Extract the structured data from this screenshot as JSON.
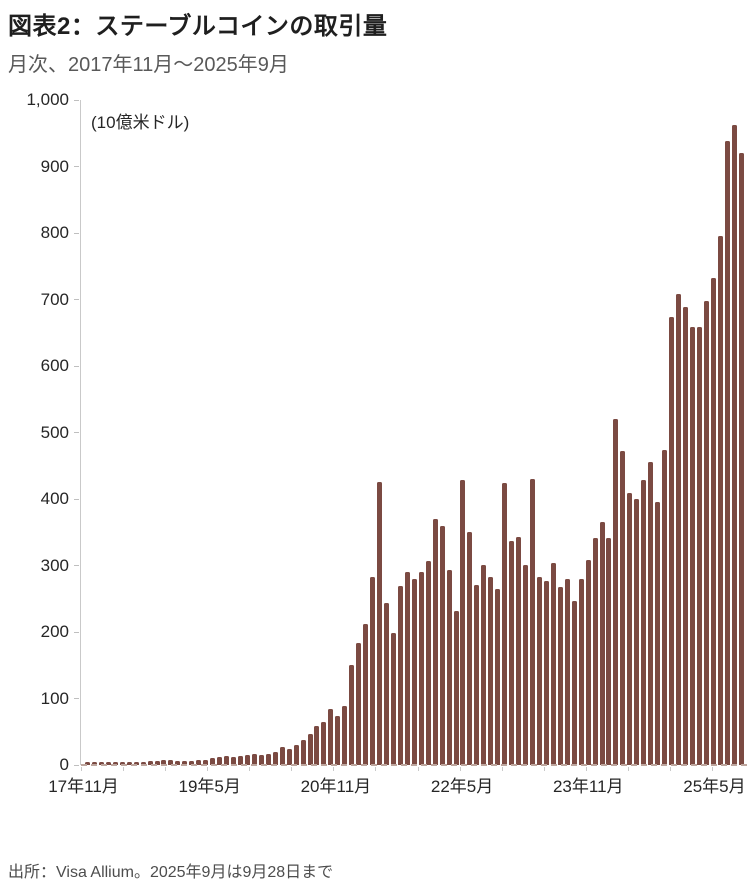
{
  "header": {
    "title": "図表2：ステーブルコインの取引量",
    "subtitle": "月次、2017年11月～2025年9月"
  },
  "footer": {
    "source": "出所：Visa Allium。2025年9月は9月28日まで"
  },
  "chart_data": {
    "type": "bar",
    "title": "図表2：ステーブルコインの取引量",
    "subtitle": "月次、2017年11月～2025年9月",
    "unit_label": "(10億米ドル)",
    "ylabel": "10億米ドル",
    "ylim": [
      0,
      1000
    ],
    "ytick_interval": 100,
    "ytick_labels": [
      "1,000",
      "900",
      "800",
      "700",
      "600",
      "500",
      "400",
      "300",
      "200",
      "100",
      "0"
    ],
    "grid": false,
    "legend_position": "none",
    "bar_color": "#7b4a42",
    "axis_color": "#c9c9c9",
    "baseline_color": "#bda69e",
    "xtick_labels": [
      {
        "index": 0,
        "label": "17年11月"
      },
      {
        "index": 18,
        "label": "19年5月"
      },
      {
        "index": 36,
        "label": "20年11月"
      },
      {
        "index": 54,
        "label": "22年5月"
      },
      {
        "index": 72,
        "label": "23年11月"
      },
      {
        "index": 90,
        "label": "25年5月"
      }
    ],
    "categories": [
      "2017-11",
      "2017-12",
      "2018-01",
      "2018-02",
      "2018-03",
      "2018-04",
      "2018-05",
      "2018-06",
      "2018-07",
      "2018-08",
      "2018-09",
      "2018-10",
      "2018-11",
      "2018-12",
      "2019-01",
      "2019-02",
      "2019-03",
      "2019-04",
      "2019-05",
      "2019-06",
      "2019-07",
      "2019-08",
      "2019-09",
      "2019-10",
      "2019-11",
      "2019-12",
      "2020-01",
      "2020-02",
      "2020-03",
      "2020-04",
      "2020-05",
      "2020-06",
      "2020-07",
      "2020-08",
      "2020-09",
      "2020-10",
      "2020-11",
      "2020-12",
      "2021-01",
      "2021-02",
      "2021-03",
      "2021-04",
      "2021-05",
      "2021-06",
      "2021-07",
      "2021-08",
      "2021-09",
      "2021-10",
      "2021-11",
      "2021-12",
      "2022-01",
      "2022-02",
      "2022-03",
      "2022-04",
      "2022-05",
      "2022-06",
      "2022-07",
      "2022-08",
      "2022-09",
      "2022-10",
      "2022-11",
      "2022-12",
      "2023-01",
      "2023-02",
      "2023-03",
      "2023-04",
      "2023-05",
      "2023-06",
      "2023-07",
      "2023-08",
      "2023-09",
      "2023-10",
      "2023-11",
      "2023-12",
      "2024-01",
      "2024-02",
      "2024-03",
      "2024-04",
      "2024-05",
      "2024-06",
      "2024-07",
      "2024-08",
      "2024-09",
      "2024-10",
      "2024-11",
      "2024-12",
      "2025-01",
      "2025-02",
      "2025-03",
      "2025-04",
      "2025-05",
      "2025-06",
      "2025-07",
      "2025-08",
      "2025-09"
    ],
    "values": [
      4,
      5,
      5,
      4,
      5,
      4,
      5,
      5,
      5,
      6,
      6,
      7,
      7,
      6,
      6,
      6,
      7,
      8,
      10,
      12,
      13,
      12,
      14,
      15,
      16,
      15,
      17,
      20,
      27,
      24,
      30,
      38,
      47,
      58,
      65,
      84,
      74,
      88,
      151,
      183,
      212,
      282,
      425,
      244,
      198,
      269,
      291,
      280,
      290,
      307,
      370,
      359,
      294,
      232,
      429,
      350,
      271,
      301,
      283,
      264,
      424,
      337,
      343,
      301,
      430,
      282,
      276,
      304,
      267,
      280,
      247,
      279,
      309,
      342,
      365,
      341,
      521,
      472,
      409,
      400,
      429,
      456,
      396,
      473,
      673,
      708,
      688,
      658,
      658,
      698,
      733,
      795,
      939,
      962,
      921
    ]
  }
}
